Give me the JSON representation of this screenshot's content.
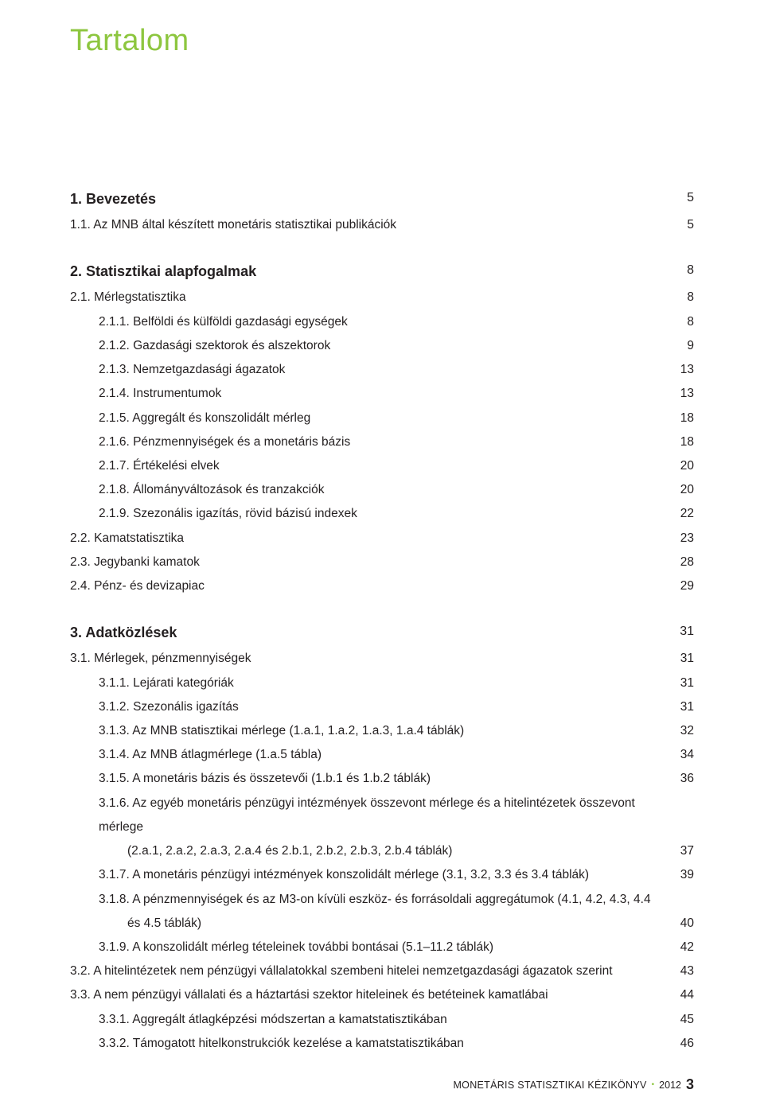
{
  "title": "Tartalom",
  "title_color": "#8dc63f",
  "text_color": "#231f20",
  "accent_color": "#8dc63f",
  "background_color": "#ffffff",
  "fonts": {
    "title_pt": 38,
    "lvl1_pt": 18,
    "body_pt": 15.5,
    "footer_pt": 12.5,
    "pagenum_pt": 18
  },
  "toc": {
    "sections": [
      {
        "heading": {
          "label": "1. Bevezetés",
          "page": "5"
        },
        "items": [
          {
            "level": 2,
            "label": "1.1. Az MNB által készített monetáris statisztikai publikációk",
            "page": "5"
          }
        ]
      },
      {
        "heading": {
          "label": "2. Statisztikai alapfogalmak",
          "page": "8"
        },
        "items": [
          {
            "level": 2,
            "label": "2.1. Mérlegstatisztika",
            "page": "8"
          },
          {
            "level": 3,
            "label": "2.1.1. Belföldi és külföldi gazdasági egységek",
            "page": "8"
          },
          {
            "level": 3,
            "label": "2.1.2. Gazdasági szektorok és alszektorok",
            "page": "9"
          },
          {
            "level": 3,
            "label": "2.1.3. Nemzetgazdasági ágazatok",
            "page": "13"
          },
          {
            "level": 3,
            "label": "2.1.4. Instrumentumok",
            "page": "13"
          },
          {
            "level": 3,
            "label": "2.1.5. Aggregált és konszolidált mérleg",
            "page": "18"
          },
          {
            "level": 3,
            "label": "2.1.6. Pénzmennyiségek és a monetáris bázis",
            "page": "18"
          },
          {
            "level": 3,
            "label": "2.1.7. Értékelési elvek",
            "page": "20"
          },
          {
            "level": 3,
            "label": "2.1.8. Állományváltozások és tranzakciók",
            "page": "20"
          },
          {
            "level": 3,
            "label": "2.1.9. Szezonális igazítás, rövid bázisú indexek",
            "page": "22"
          },
          {
            "level": 2,
            "label": "2.2. Kamatstatisztika",
            "page": "23"
          },
          {
            "level": 2,
            "label": "2.3. Jegybanki kamatok",
            "page": "28"
          },
          {
            "level": 2,
            "label": "2.4. Pénz- és devizapiac",
            "page": "29"
          }
        ]
      },
      {
        "heading": {
          "label": "3. Adatközlések",
          "page": "31"
        },
        "items": [
          {
            "level": 2,
            "label": "3.1. Mérlegek, pénzmennyiségek",
            "page": "31"
          },
          {
            "level": 3,
            "label": "3.1.1. Lejárati kategóriák",
            "page": "31"
          },
          {
            "level": 3,
            "label": "3.1.2. Szezonális igazítás",
            "page": "31"
          },
          {
            "level": 3,
            "label": "3.1.3. Az MNB statisztikai mérlege (1.a.1, 1.a.2, 1.a.3, 1.a.4 táblák)",
            "page": "32"
          },
          {
            "level": 3,
            "label": "3.1.4. Az MNB átlagmérlege (1.a.5 tábla)",
            "page": "34"
          },
          {
            "level": 3,
            "label": "3.1.5. A monetáris bázis és összetevői (1.b.1 és 1.b.2 táblák)",
            "page": "36"
          },
          {
            "level": 3,
            "label": "3.1.6. Az egyéb monetáris pénzügyi intézmények összevont mérlege és a hitelintézetek összevont mérlege",
            "cont": "(2.a.1, 2.a.2, 2.a.3, 2.a.4 és 2.b.1, 2.b.2, 2.b.3, 2.b.4 táblák)",
            "page": "37"
          },
          {
            "level": 3,
            "label": "3.1.7. A monetáris pénzügyi intézmények konszolidált mérlege (3.1, 3.2, 3.3 és 3.4 táblák)",
            "page": "39"
          },
          {
            "level": 3,
            "label": "3.1.8. A pénzmennyiségek és az M3-on kívüli eszköz- és forrásoldali aggregátumok (4.1, 4.2, 4.3, 4.4",
            "cont": "és 4.5 táblák)",
            "page": "40"
          },
          {
            "level": 3,
            "label": "3.1.9. A konszolidált mérleg tételeinek további bontásai (5.1–11.2 táblák)",
            "page": "42"
          },
          {
            "level": 2,
            "label": "3.2. A hitelintézetek nem pénzügyi vállalatokkal szembeni hitelei nemzetgazdasági ágazatok szerint",
            "page": "43"
          },
          {
            "level": 2,
            "label": "3.3. A nem pénzügyi vállalati és a háztartási szektor hiteleinek és betéteinek kamatlábai",
            "page": "44"
          },
          {
            "level": 3,
            "label": "3.3.1. Aggregált átlagképzési módszertan a kamatstatisztikában",
            "page": "45"
          },
          {
            "level": 3,
            "label": "3.3.2. Támogatott hitelkonstrukciók kezelése a kamatstatisztikában",
            "page": "46"
          }
        ]
      }
    ]
  },
  "footer": {
    "book": "MONETÁRIS STATISZTIKAI KÉZIKÖNYV",
    "bullet": "•",
    "year": "2012",
    "pagenum": "3"
  }
}
